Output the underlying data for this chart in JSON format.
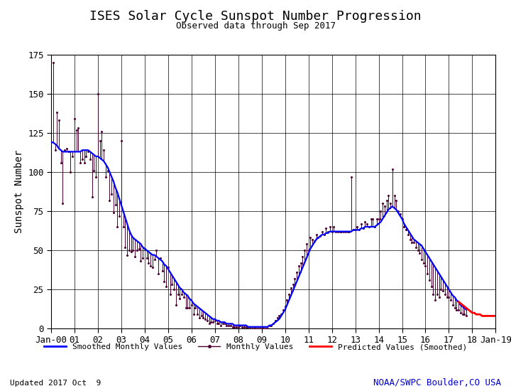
{
  "title": "ISES Solar Cycle Sunspot Number Progression",
  "subtitle": "Observed data through Sep 2017",
  "ylabel": "Sunspot Number",
  "updated_text": "Updated 2017 Oct  9",
  "noaa_text": "NOAA/SWPC Boulder,CO USA",
  "legend_items": [
    "Smoothed Monthly Values",
    "Monthly Values",
    "Predicted Values (Smoothed)"
  ],
  "ylim": [
    0,
    175
  ],
  "yticks": [
    0,
    25,
    50,
    75,
    100,
    125,
    150,
    175
  ],
  "xlim": [
    2000.0,
    2019.0
  ],
  "background_color": "#ffffff",
  "grid_color": "#000000",
  "smoothed_color": "#0000ff",
  "monthly_color": "#4B0030",
  "predicted_color": "#ff0000",
  "title_color": "#000000",
  "noaa_color": "#0000cc",
  "title_fontsize": 13,
  "subtitle_fontsize": 9,
  "axis_fontsize": 9,
  "ylabel_fontsize": 10,
  "legend_fontsize": 8,
  "footer_fontsize": 8,
  "smoothed_x": [
    2000.0,
    2000.083,
    2000.167,
    2000.25,
    2000.333,
    2000.417,
    2000.5,
    2000.583,
    2000.667,
    2000.75,
    2000.833,
    2000.917,
    2001.0,
    2001.083,
    2001.167,
    2001.25,
    2001.333,
    2001.417,
    2001.5,
    2001.583,
    2001.667,
    2001.75,
    2001.833,
    2001.917,
    2002.0,
    2002.083,
    2002.167,
    2002.25,
    2002.333,
    2002.417,
    2002.5,
    2002.583,
    2002.667,
    2002.75,
    2002.833,
    2002.917,
    2003.0,
    2003.083,
    2003.167,
    2003.25,
    2003.333,
    2003.417,
    2003.5,
    2003.583,
    2003.667,
    2003.75,
    2003.833,
    2003.917,
    2004.0,
    2004.083,
    2004.167,
    2004.25,
    2004.333,
    2004.417,
    2004.5,
    2004.583,
    2004.667,
    2004.75,
    2004.833,
    2004.917,
    2005.0,
    2005.083,
    2005.167,
    2005.25,
    2005.333,
    2005.417,
    2005.5,
    2005.583,
    2005.667,
    2005.75,
    2005.833,
    2005.917,
    2006.0,
    2006.083,
    2006.167,
    2006.25,
    2006.333,
    2006.417,
    2006.5,
    2006.583,
    2006.667,
    2006.75,
    2006.833,
    2006.917,
    2007.0,
    2007.083,
    2007.167,
    2007.25,
    2007.333,
    2007.417,
    2007.5,
    2007.583,
    2007.667,
    2007.75,
    2007.833,
    2007.917,
    2008.0,
    2008.083,
    2008.167,
    2008.25,
    2008.333,
    2008.417,
    2008.5,
    2008.583,
    2008.667,
    2008.75,
    2008.833,
    2008.917,
    2009.0,
    2009.083,
    2009.167,
    2009.25,
    2009.333,
    2009.417,
    2009.5,
    2009.583,
    2009.667,
    2009.75,
    2009.833,
    2009.917,
    2010.0,
    2010.083,
    2010.167,
    2010.25,
    2010.333,
    2010.417,
    2010.5,
    2010.583,
    2010.667,
    2010.75,
    2010.833,
    2010.917,
    2011.0,
    2011.083,
    2011.167,
    2011.25,
    2011.333,
    2011.417,
    2011.5,
    2011.583,
    2011.667,
    2011.75,
    2011.833,
    2011.917,
    2012.0,
    2012.083,
    2012.167,
    2012.25,
    2012.333,
    2012.417,
    2012.5,
    2012.583,
    2012.667,
    2012.75,
    2012.833,
    2012.917,
    2013.0,
    2013.083,
    2013.167,
    2013.25,
    2013.333,
    2013.417,
    2013.5,
    2013.583,
    2013.667,
    2013.75,
    2013.833,
    2013.917,
    2014.0,
    2014.083,
    2014.167,
    2014.25,
    2014.333,
    2014.417,
    2014.5,
    2014.583,
    2014.667,
    2014.75,
    2014.833,
    2014.917,
    2015.0,
    2015.083,
    2015.167,
    2015.25,
    2015.333,
    2015.417,
    2015.5,
    2015.583,
    2015.667,
    2015.75,
    2015.833,
    2015.917,
    2016.0,
    2016.083,
    2016.167,
    2016.25,
    2016.333,
    2016.417,
    2016.5,
    2016.583,
    2016.667,
    2016.75,
    2016.833,
    2016.917,
    2017.0,
    2017.083,
    2017.167,
    2017.25,
    2017.333,
    2017.417,
    2017.5,
    2017.583,
    2017.667,
    2017.75
  ],
  "smoothed_y": [
    119,
    119,
    118,
    117,
    115,
    114,
    113,
    113,
    113,
    113,
    113,
    113,
    113,
    113,
    113,
    113,
    114,
    114,
    114,
    114,
    113,
    112,
    111,
    110,
    110,
    109,
    108,
    107,
    105,
    103,
    100,
    97,
    94,
    90,
    87,
    83,
    79,
    75,
    71,
    67,
    63,
    60,
    58,
    57,
    56,
    55,
    54,
    52,
    51,
    50,
    49,
    48,
    47,
    47,
    46,
    45,
    44,
    43,
    41,
    40,
    38,
    36,
    34,
    32,
    30,
    28,
    26,
    25,
    23,
    22,
    21,
    19,
    18,
    16,
    15,
    14,
    13,
    12,
    11,
    10,
    9,
    8,
    7,
    6,
    6,
    5,
    5,
    4,
    4,
    4,
    3,
    3,
    3,
    3,
    2,
    2,
    2,
    2,
    2,
    2,
    2,
    1,
    1,
    1,
    1,
    1,
    1,
    1,
    1,
    1,
    1,
    1,
    2,
    2,
    3,
    4,
    5,
    6,
    8,
    10,
    12,
    15,
    18,
    21,
    24,
    27,
    30,
    33,
    36,
    39,
    42,
    45,
    48,
    51,
    53,
    55,
    57,
    58,
    59,
    60,
    60,
    61,
    61,
    62,
    62,
    62,
    62,
    62,
    62,
    62,
    62,
    62,
    62,
    62,
    62,
    63,
    63,
    63,
    63,
    64,
    64,
    65,
    65,
    65,
    65,
    65,
    65,
    66,
    67,
    68,
    70,
    72,
    74,
    76,
    77,
    78,
    77,
    76,
    74,
    72,
    70,
    67,
    65,
    63,
    61,
    59,
    57,
    56,
    55,
    54,
    53,
    51,
    49,
    47,
    45,
    43,
    41,
    39,
    37,
    35,
    33,
    31,
    29,
    27,
    25,
    23,
    21,
    20,
    18,
    17,
    15,
    14,
    13,
    12
  ],
  "monthly_y": [
    119,
    170,
    114,
    138,
    133,
    106,
    80,
    114,
    115,
    113,
    100,
    110,
    134,
    127,
    128,
    106,
    108,
    106,
    110,
    113,
    108,
    84,
    101,
    97,
    150,
    120,
    126,
    114,
    97,
    101,
    82,
    86,
    74,
    79,
    65,
    72,
    120,
    65,
    52,
    47,
    50,
    49,
    50,
    46,
    50,
    51,
    43,
    45,
    51,
    45,
    42,
    40,
    39,
    44,
    50,
    35,
    45,
    37,
    30,
    27,
    39,
    22,
    28,
    25,
    15,
    22,
    19,
    22,
    20,
    13,
    13,
    13,
    15,
    9,
    13,
    9,
    7,
    8,
    7,
    6,
    5,
    3,
    4,
    4,
    5,
    3,
    3,
    2,
    3,
    3,
    2,
    2,
    2,
    1,
    1,
    1,
    1,
    2,
    1,
    1,
    1,
    1,
    1,
    0,
    0,
    0,
    0,
    0,
    0,
    0,
    0,
    0,
    2,
    2,
    3,
    5,
    7,
    8,
    9,
    12,
    14,
    18,
    22,
    26,
    28,
    32,
    36,
    40,
    42,
    46,
    50,
    54,
    50,
    58,
    57,
    56,
    60,
    58,
    59,
    62,
    60,
    64,
    62,
    65,
    62,
    65,
    62,
    62,
    62,
    62,
    62,
    62,
    62,
    62,
    97,
    63,
    63,
    65,
    63,
    67,
    64,
    68,
    67,
    65,
    70,
    70,
    65,
    70,
    70,
    75,
    80,
    78,
    82,
    85,
    80,
    102,
    85,
    82,
    75,
    73,
    70,
    65,
    63,
    60,
    57,
    55,
    55,
    52,
    50,
    48,
    44,
    42,
    40,
    35,
    31,
    27,
    22,
    18,
    22,
    20,
    25,
    24,
    22,
    20,
    20,
    18,
    15,
    13,
    12,
    12,
    10,
    9,
    9,
    8
  ],
  "pred_x": [
    2017.417,
    2017.5,
    2017.583,
    2017.667,
    2017.75,
    2017.833,
    2017.917,
    2018.0,
    2018.083,
    2018.167,
    2018.25,
    2018.333,
    2018.417,
    2018.5,
    2018.583,
    2018.667,
    2018.75,
    2018.833,
    2018.917,
    2019.0
  ],
  "pred_y": [
    17,
    16,
    15,
    14,
    13,
    12,
    11,
    10,
    10,
    9,
    9,
    9,
    8,
    8,
    8,
    8,
    8,
    8,
    8,
    8
  ]
}
